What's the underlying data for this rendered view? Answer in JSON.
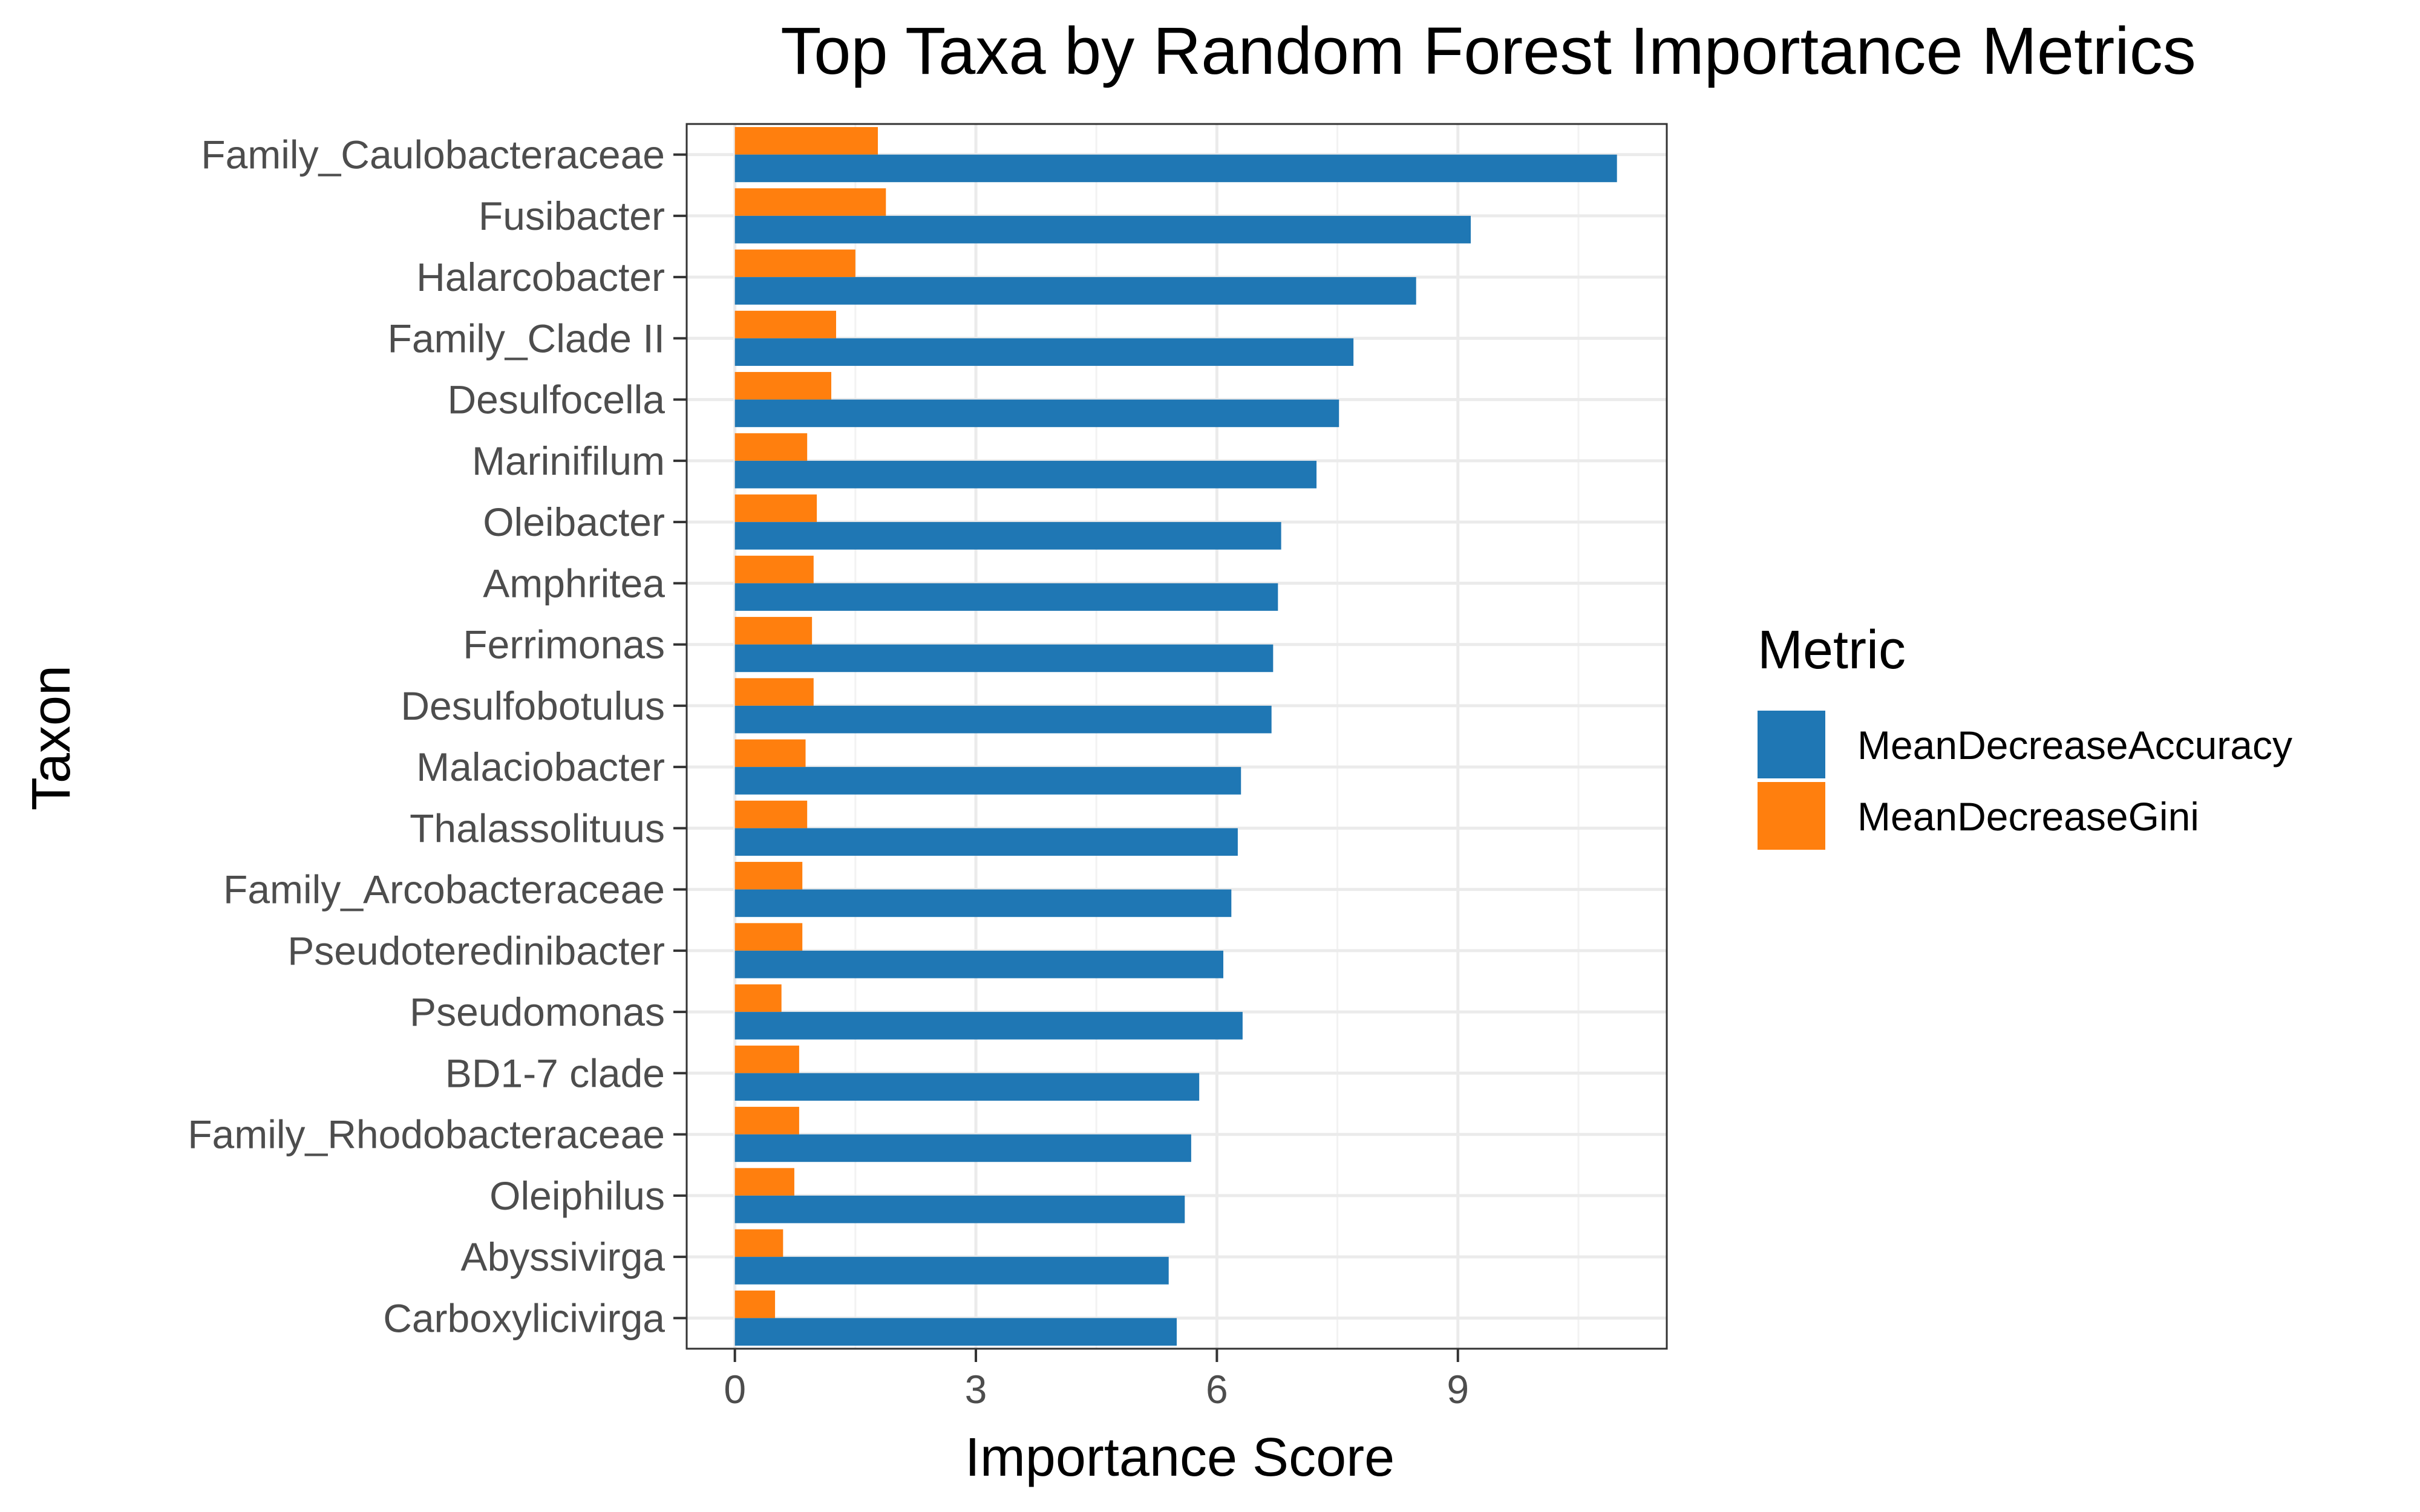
{
  "chart_data": {
    "type": "bar",
    "orientation": "horizontal",
    "title": "Top Taxa by Random Forest Importance Metrics",
    "xlabel": "Importance Score",
    "ylabel": "Taxon",
    "xlim": [
      -0.6,
      11.6
    ],
    "xticks": [
      0,
      3,
      6,
      9
    ],
    "grid": true,
    "legend_title": "Metric",
    "legend_position": "right",
    "categories": [
      "Family_Caulobacteraceae",
      "Fusibacter",
      "Halarcobacter",
      "Family_Clade II",
      "Desulfocella",
      "Marinifilum",
      "Oleibacter",
      "Amphritea",
      "Ferrimonas",
      "Desulfobotulus",
      "Malaciobacter",
      "Thalassolituus",
      "Family_Arcobacteraceae",
      "Pseudoteredinibacter",
      "Pseudomonas",
      "BD1-7 clade",
      "Family_Rhodobacteraceae",
      "Oleiphilus",
      "Abyssivirga",
      "Carboxylicivirga"
    ],
    "series": [
      {
        "name": "MeanDecreaseAccuracy",
        "color": "#1f77b4",
        "values": [
          10.98,
          9.16,
          8.48,
          7.7,
          7.52,
          7.24,
          6.8,
          6.76,
          6.7,
          6.68,
          6.3,
          6.26,
          6.18,
          6.08,
          6.32,
          5.78,
          5.68,
          5.6,
          5.4,
          5.5
        ]
      },
      {
        "name": "MeanDecreaseGini",
        "color": "#ff7f0e",
        "values": [
          1.78,
          1.88,
          1.5,
          1.26,
          1.2,
          0.9,
          1.02,
          0.98,
          0.96,
          0.98,
          0.88,
          0.9,
          0.84,
          0.84,
          0.58,
          0.8,
          0.8,
          0.74,
          0.6,
          0.5
        ]
      }
    ]
  }
}
